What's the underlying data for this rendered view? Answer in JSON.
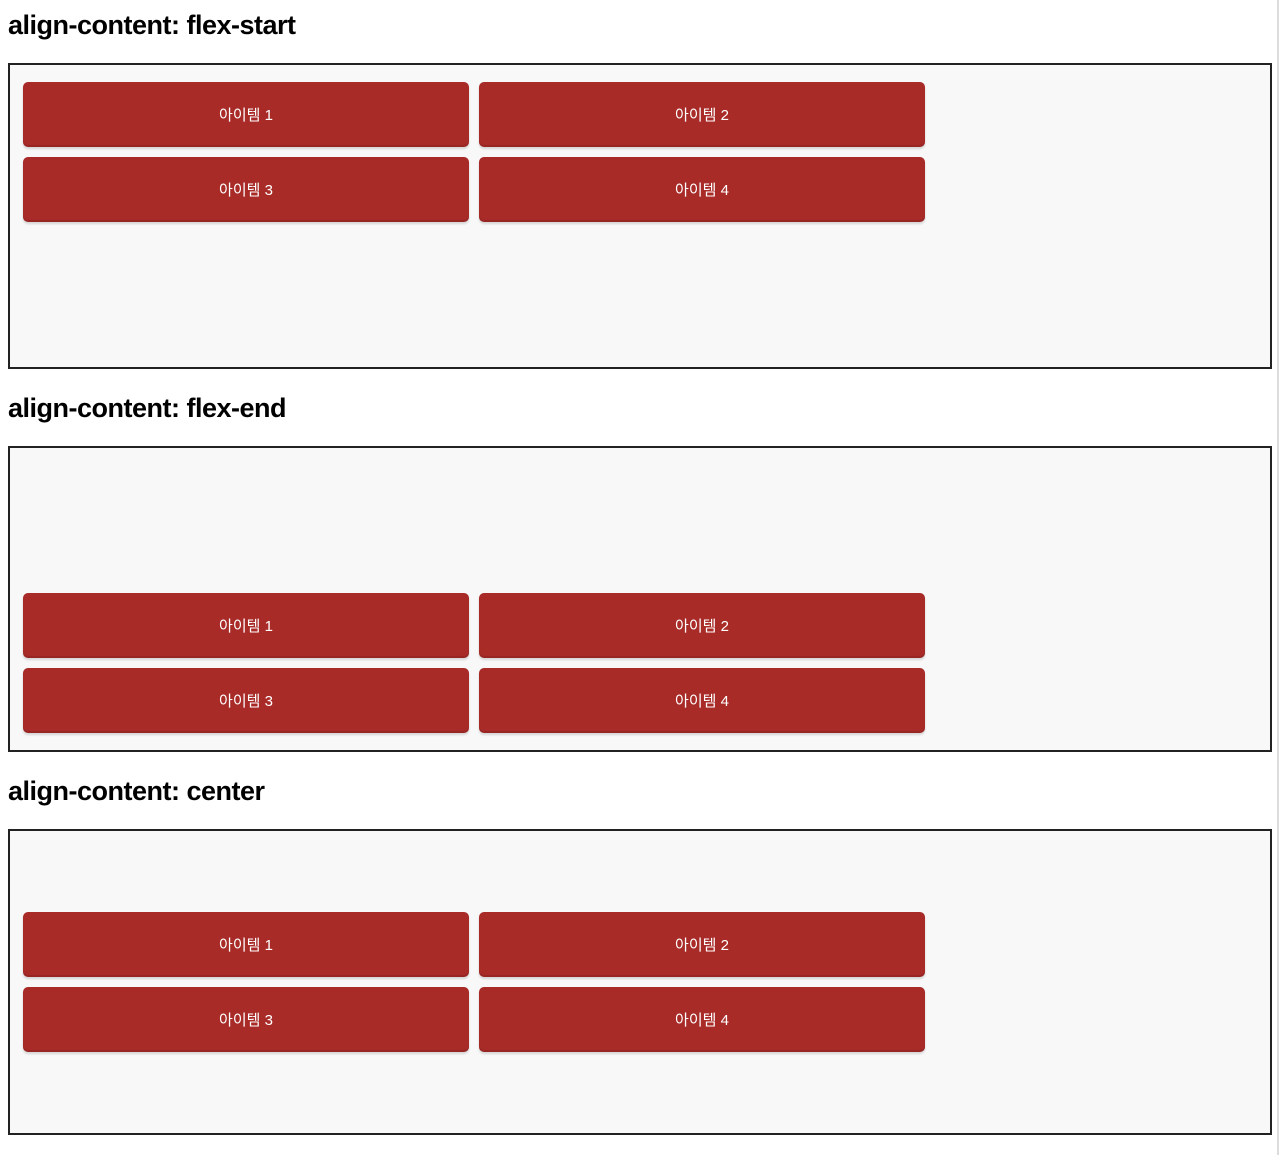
{
  "sections": [
    {
      "heading": "align-content: flex-start",
      "align_value": "flex-start",
      "items": [
        "아이템 1",
        "아이템 2",
        "아이템 3",
        "아이템 4"
      ]
    },
    {
      "heading": "align-content: flex-end",
      "align_value": "flex-end",
      "items": [
        "아이템 1",
        "아이템 2",
        "아이템 3",
        "아이템 4"
      ]
    },
    {
      "heading": "align-content: center",
      "align_value": "center",
      "items": [
        "아이템 1",
        "아이템 2",
        "아이템 3",
        "아이템 4"
      ]
    }
  ],
  "colors": {
    "item_background": "#a82b28",
    "item_text": "#ffffff",
    "container_background": "#f8f8f8",
    "container_border": "#222222",
    "heading_text": "#000000"
  }
}
